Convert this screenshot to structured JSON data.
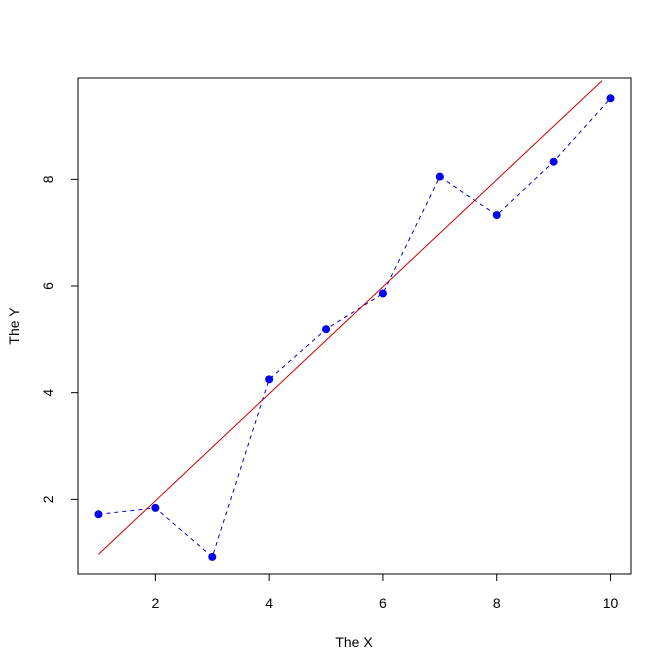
{
  "chart_data": {
    "type": "line",
    "title": "",
    "xlabel": "The X",
    "ylabel": "The Y",
    "xlim": [
      0.64,
      10.36
    ],
    "ylim": [
      0.6,
      9.9
    ],
    "xticks": [
      2,
      4,
      6,
      8,
      10
    ],
    "yticks": [
      2,
      4,
      6,
      8
    ],
    "grid": false,
    "series": [
      {
        "type": "line+points",
        "line_style": "dashed",
        "color": "#0000cc",
        "point_color": "#0000ff",
        "x": [
          1,
          2,
          3,
          4,
          5,
          6,
          7,
          8,
          9,
          10
        ],
        "y": [
          1.72,
          1.84,
          0.92,
          4.25,
          5.19,
          5.86,
          8.05,
          7.33,
          8.33,
          9.52
        ]
      },
      {
        "type": "line",
        "line_style": "solid",
        "color": "#cc0000",
        "x": [
          1,
          9.85
        ],
        "y": [
          0.97,
          9.85
        ]
      }
    ]
  }
}
